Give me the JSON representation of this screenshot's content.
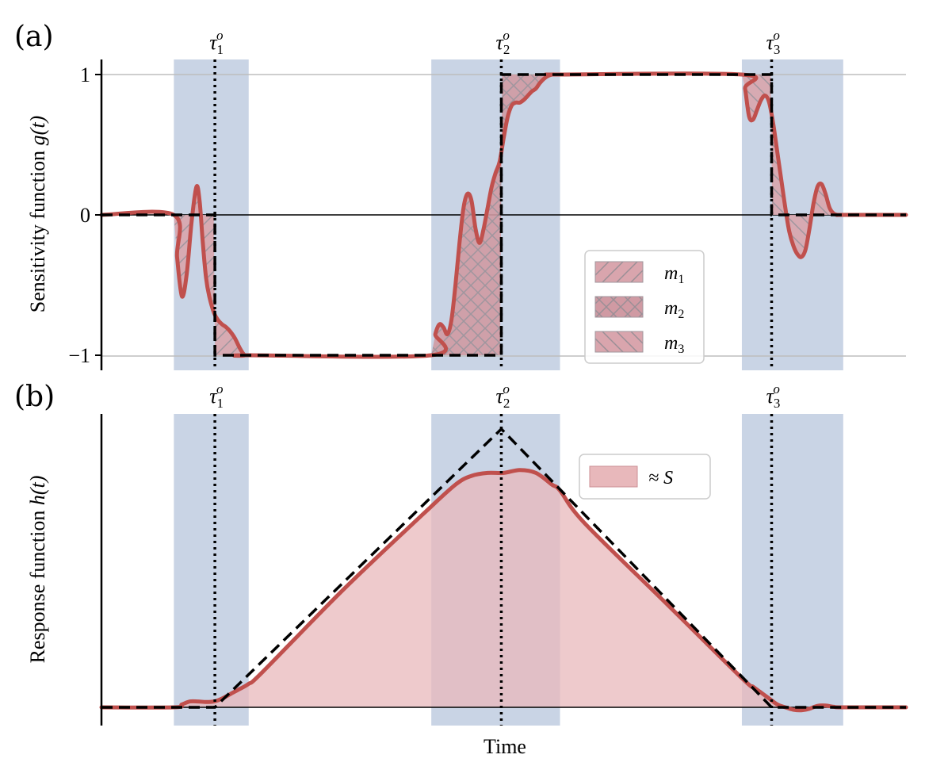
{
  "colors": {
    "shade": "#c9d4e5",
    "red": "#c0504d",
    "redFill": "#e8b8bb",
    "grid": "#bdbdbd",
    "black": "#000000"
  },
  "chart_data": [
    {
      "type": "line",
      "panel_label": "(a)",
      "ylabel_text": "Sensitivity function ",
      "ylabel_math": "g(t)",
      "yticks": [
        "1",
        "0",
        "−1"
      ],
      "ytick_values": [
        1,
        0,
        -1
      ],
      "ylim": [
        -1.1,
        1.1
      ],
      "xlim": [
        0,
        1
      ],
      "grid_y": true,
      "tau_labels": [
        "τ1o",
        "τ2o",
        "τ3o"
      ],
      "tau_x": [
        0.141,
        0.497,
        0.833
      ],
      "shaded_spans": [
        [
          0.09,
          0.183
        ],
        [
          0.41,
          0.57
        ],
        [
          0.796,
          0.922
        ]
      ],
      "ideal_steps": {
        "x": [
          0,
          0.141,
          0.141,
          0.497,
          0.497,
          0.833,
          0.833,
          1
        ],
        "y": [
          0,
          0,
          -1,
          -1,
          1,
          1,
          0,
          0
        ]
      },
      "hatched_regions": [
        {
          "name": "m1",
          "x0": 0.09,
          "x1": 0.183
        },
        {
          "name": "m2",
          "x0": 0.41,
          "x1": 0.57
        },
        {
          "name": "m3",
          "x0": 0.796,
          "x1": 0.922
        }
      ],
      "legend": {
        "position": "lower-right",
        "entries": [
          {
            "label": "m1",
            "base": "m",
            "sub": "1",
            "hatch": "diagonal"
          },
          {
            "label": "m2",
            "base": "m",
            "sub": "2",
            "hatch": "cross"
          },
          {
            "label": "m3",
            "base": "m",
            "sub": "3",
            "hatch": "back-diagonal"
          }
        ]
      },
      "series": [
        {
          "style": "solid-red",
          "x": [
            0,
            0.09,
            0.094,
            0.1,
            0.106,
            0.112,
            0.118,
            0.122,
            0.126,
            0.13,
            0.134,
            0.14,
            0.145,
            0.15,
            0.155,
            0.16,
            0.166,
            0.172,
            0.178,
            0.183,
            0.41,
            0.415,
            0.42,
            0.425,
            0.43,
            0.435,
            0.44,
            0.445,
            0.45,
            0.455,
            0.46,
            0.465,
            0.47,
            0.475,
            0.48,
            0.485,
            0.49,
            0.495,
            0.5,
            0.505,
            0.51,
            0.515,
            0.52,
            0.525,
            0.53,
            0.535,
            0.54,
            0.545,
            0.55,
            0.555,
            0.56,
            0.565,
            0.57,
            0.796,
            0.8,
            0.805,
            0.81,
            0.815,
            0.82,
            0.825,
            0.83,
            0.835,
            0.84,
            0.845,
            0.85,
            0.855,
            0.86,
            0.865,
            0.87,
            0.875,
            0.88,
            0.885,
            0.89,
            0.895,
            0.9,
            0.905,
            0.91,
            0.915,
            0.922,
            1
          ],
          "y": [
            0,
            0,
            -0.3,
            -0.58,
            -0.42,
            -0.05,
            0.2,
            0.1,
            -0.2,
            -0.45,
            -0.58,
            -0.7,
            -0.75,
            -0.78,
            -0.8,
            -0.83,
            -0.88,
            -0.95,
            -1,
            -1,
            -1,
            -0.85,
            -0.78,
            -0.8,
            -0.85,
            -0.75,
            -0.5,
            -0.2,
            0.05,
            0.15,
            0.1,
            -0.1,
            -0.2,
            -0.1,
            0.05,
            0.2,
            0.3,
            0.38,
            0.55,
            0.7,
            0.78,
            0.8,
            0.8,
            0.82,
            0.85,
            0.88,
            0.9,
            0.94,
            0.97,
            0.99,
            1,
            1,
            1,
            1,
            0.9,
            0.7,
            0.68,
            0.75,
            0.82,
            0.85,
            0.8,
            0.65,
            0.45,
            0.25,
            0.05,
            -0.12,
            -0.22,
            -0.28,
            -0.3,
            -0.25,
            -0.1,
            0.08,
            0.2,
            0.22,
            0.15,
            0.05,
            0.01,
            0,
            0,
            0
          ]
        }
      ]
    },
    {
      "type": "area",
      "panel_label": "(b)",
      "ylabel_text": "Response function ",
      "ylabel_math": "h(t)",
      "xlabel": "Time",
      "xlim": [
        0,
        1
      ],
      "ylim": [
        0,
        1
      ],
      "tau_labels": [
        "τ1o",
        "τ2o",
        "τ3o"
      ],
      "tau_x": [
        0.141,
        0.497,
        0.833
      ],
      "shaded_spans": [
        [
          0.09,
          0.183
        ],
        [
          0.41,
          0.57
        ],
        [
          0.796,
          0.922
        ]
      ],
      "legend": {
        "position": "upper-right",
        "label": "≈ S"
      },
      "ideal": {
        "x": [
          0,
          0.141,
          0.497,
          0.833,
          1
        ],
        "y": [
          0,
          0,
          0.95,
          0,
          0
        ]
      },
      "series": [
        {
          "style": "solid-red-filled",
          "x": [
            0,
            0.09,
            0.1,
            0.11,
            0.12,
            0.13,
            0.14,
            0.15,
            0.16,
            0.17,
            0.183,
            0.2,
            0.3,
            0.4,
            0.44,
            0.46,
            0.48,
            0.5,
            0.52,
            0.54,
            0.56,
            0.57,
            0.6,
            0.7,
            0.796,
            0.81,
            0.82,
            0.83,
            0.84,
            0.85,
            0.86,
            0.87,
            0.88,
            0.89,
            0.9,
            0.91,
            0.922,
            1
          ],
          "y": [
            0,
            0,
            0.01,
            0.02,
            0.02,
            0.018,
            0.02,
            0.03,
            0.045,
            0.06,
            0.08,
            0.12,
            0.4,
            0.66,
            0.76,
            0.79,
            0.8,
            0.8,
            0.81,
            0.8,
            0.76,
            0.74,
            0.63,
            0.36,
            0.1,
            0.07,
            0.05,
            0.03,
            0.01,
            0,
            -0.008,
            -0.01,
            -0.005,
            0.005,
            0.006,
            0.002,
            0,
            0
          ]
        }
      ]
    }
  ]
}
